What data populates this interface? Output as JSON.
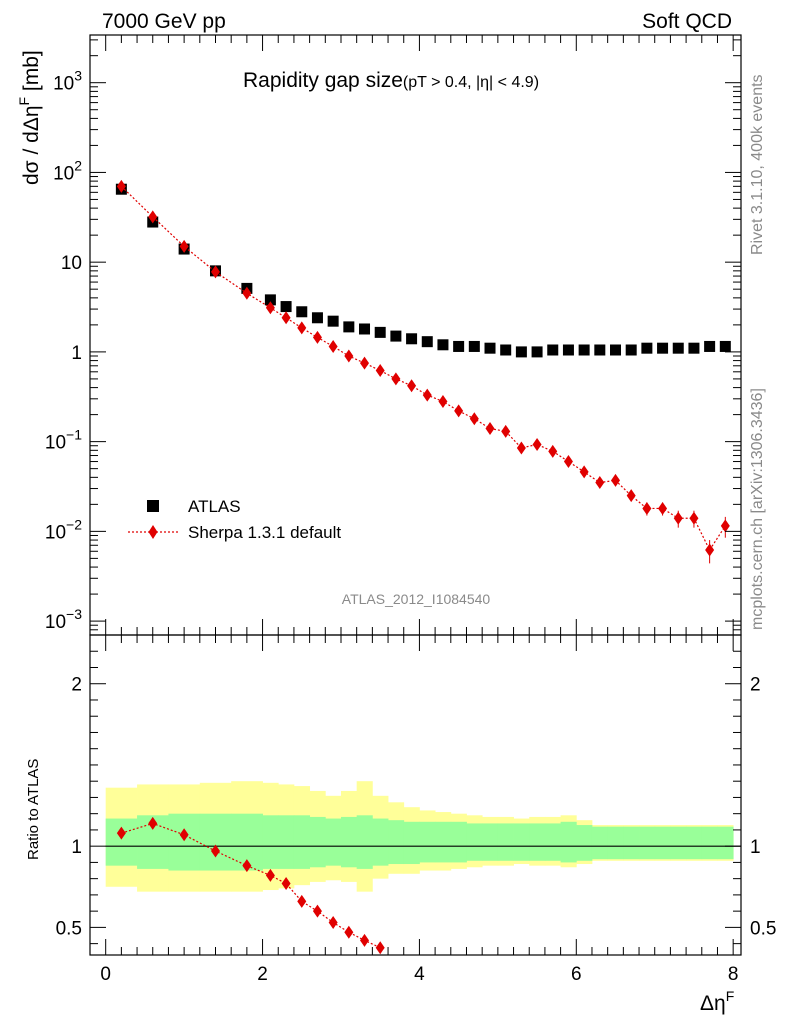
{
  "header": {
    "left": "7000 GeV pp",
    "right": "Soft QCD"
  },
  "side_labels": {
    "rivet": "Rivet 3.1.10,  400k events",
    "mcplots": "mcplots.cern.ch [arXiv:1306.3436]"
  },
  "chart_data": [
    {
      "type": "scatter",
      "title_main": "Rapidity gap size",
      "title_cut": "(pT > 0.4, |η| < 4.9)",
      "ylabel": "dσ / dΔη",
      "ylabel_sup": "F",
      "ylabel_unit": " [mb]",
      "yscale": "log",
      "xlim": [
        -0.2,
        8.1
      ],
      "ylim": [
        0.0007,
        3400
      ],
      "y_ticks": [
        {
          "v": 0.001,
          "label": "10",
          "exp": "−3"
        },
        {
          "v": 0.01,
          "label": "10",
          "exp": "−2"
        },
        {
          "v": 0.1,
          "label": "10",
          "exp": "−1"
        },
        {
          "v": 1,
          "label": "1",
          "exp": ""
        },
        {
          "v": 10,
          "label": "10",
          "exp": ""
        },
        {
          "v": 100,
          "label": "10",
          "exp": "2"
        },
        {
          "v": 1000,
          "label": "10",
          "exp": "3"
        }
      ],
      "analysis_label": "ATLAS_2012_I1084540",
      "legend": {
        "position": "bottom-left",
        "entries": [
          "ATLAS",
          "Sherpa 1.3.1 default"
        ]
      },
      "series": [
        {
          "name": "ATLAS",
          "marker": "square",
          "color": "#000000",
          "x": [
            0.2,
            0.6,
            1.0,
            1.4,
            1.8,
            2.1,
            2.3,
            2.5,
            2.7,
            2.9,
            3.1,
            3.3,
            3.5,
            3.7,
            3.9,
            4.1,
            4.3,
            4.5,
            4.7,
            4.9,
            5.1,
            5.3,
            5.5,
            5.7,
            5.9,
            6.1,
            6.3,
            6.5,
            6.7,
            6.9,
            7.1,
            7.3,
            7.5,
            7.7,
            7.9
          ],
          "y": [
            65,
            28,
            14,
            8.0,
            5.1,
            3.8,
            3.2,
            2.8,
            2.4,
            2.2,
            1.9,
            1.8,
            1.65,
            1.5,
            1.4,
            1.3,
            1.2,
            1.15,
            1.15,
            1.1,
            1.05,
            1.0,
            1.0,
            1.05,
            1.05,
            1.05,
            1.05,
            1.05,
            1.05,
            1.1,
            1.1,
            1.1,
            1.1,
            1.15,
            1.15
          ]
        },
        {
          "name": "Sherpa 1.3.1 default",
          "marker": "diamond",
          "color": "#e00000",
          "x": [
            0.2,
            0.6,
            1.0,
            1.4,
            1.8,
            2.1,
            2.3,
            2.5,
            2.7,
            2.9,
            3.1,
            3.3,
            3.5,
            3.7,
            3.9,
            4.1,
            4.3,
            4.5,
            4.7,
            4.9,
            5.1,
            5.3,
            5.5,
            5.7,
            5.9,
            6.1,
            6.3,
            6.5,
            6.7,
            6.9,
            7.1,
            7.3,
            7.5,
            7.7,
            7.9
          ],
          "y": [
            70,
            32,
            15,
            7.8,
            4.5,
            3.1,
            2.4,
            1.85,
            1.45,
            1.15,
            0.9,
            0.75,
            0.62,
            0.5,
            0.42,
            0.33,
            0.28,
            0.22,
            0.18,
            0.14,
            0.13,
            0.085,
            0.093,
            0.078,
            0.06,
            0.046,
            0.035,
            0.037,
            0.025,
            0.018,
            0.018,
            0.014,
            0.014,
            0.0062,
            0.0115
          ],
          "err_hi": [
            0,
            0,
            0,
            0,
            0,
            0,
            0,
            0,
            0,
            0,
            0,
            0,
            0,
            0,
            0,
            0,
            0,
            0,
            0,
            0,
            0,
            0,
            0,
            0,
            0,
            0,
            0.003,
            0.003,
            0.003,
            0.003,
            0.003,
            0.003,
            0.003,
            0.0018,
            0.003
          ],
          "err_lo": [
            0,
            0,
            0,
            0,
            0,
            0,
            0,
            0,
            0,
            0,
            0,
            0,
            0,
            0,
            0,
            0,
            0,
            0,
            0,
            0,
            0,
            0,
            0,
            0,
            0,
            0,
            0.003,
            0.003,
            0.003,
            0.003,
            0.003,
            0.003,
            0.003,
            0.0018,
            0.003
          ]
        }
      ]
    },
    {
      "type": "scatter",
      "ylabel": "Ratio to ATLAS",
      "xlabel": "Δη",
      "xlabel_sup": "F",
      "xlim": [
        -0.2,
        8.1
      ],
      "ylim": [
        0.33,
        2.3
      ],
      "y_ticks": [
        0.5,
        1,
        2
      ],
      "y_tick_labels": [
        "0.5",
        "1",
        "2"
      ],
      "x_ticks": [
        0,
        2,
        4,
        6,
        8
      ],
      "x_tick_labels": [
        "0",
        "2",
        "4",
        "6",
        "8"
      ],
      "reference_line": 1,
      "bands": {
        "edges": [
          0.0,
          0.4,
          0.8,
          1.2,
          1.6,
          2.0,
          2.2,
          2.4,
          2.6,
          2.8,
          3.0,
          3.2,
          3.4,
          3.6,
          3.8,
          4.0,
          4.2,
          4.4,
          4.6,
          4.8,
          5.0,
          5.2,
          5.4,
          5.6,
          5.8,
          6.0,
          6.2,
          6.4,
          6.6,
          6.8,
          7.0,
          7.2,
          7.4,
          7.6,
          7.8,
          8.0
        ],
        "inner_lo": [
          0.88,
          0.86,
          0.85,
          0.85,
          0.85,
          0.86,
          0.86,
          0.86,
          0.87,
          0.88,
          0.87,
          0.86,
          0.88,
          0.89,
          0.89,
          0.9,
          0.9,
          0.9,
          0.91,
          0.91,
          0.91,
          0.91,
          0.91,
          0.91,
          0.9,
          0.91,
          0.92,
          0.92,
          0.92,
          0.92,
          0.92,
          0.92,
          0.92,
          0.92,
          0.92
        ],
        "inner_hi": [
          1.17,
          1.19,
          1.2,
          1.2,
          1.2,
          1.19,
          1.19,
          1.19,
          1.18,
          1.17,
          1.18,
          1.19,
          1.17,
          1.16,
          1.15,
          1.15,
          1.15,
          1.15,
          1.14,
          1.14,
          1.14,
          1.14,
          1.14,
          1.14,
          1.15,
          1.13,
          1.12,
          1.12,
          1.12,
          1.12,
          1.12,
          1.12,
          1.12,
          1.12,
          1.12
        ],
        "outer_lo": [
          0.75,
          0.72,
          0.72,
          0.72,
          0.72,
          0.73,
          0.74,
          0.76,
          0.78,
          0.79,
          0.78,
          0.72,
          0.8,
          0.83,
          0.83,
          0.85,
          0.85,
          0.86,
          0.87,
          0.88,
          0.88,
          0.89,
          0.88,
          0.88,
          0.87,
          0.89,
          0.91,
          0.91,
          0.91,
          0.91,
          0.91,
          0.91,
          0.91,
          0.91,
          0.91
        ],
        "outer_hi": [
          1.36,
          1.38,
          1.38,
          1.39,
          1.4,
          1.39,
          1.38,
          1.37,
          1.34,
          1.31,
          1.34,
          1.4,
          1.31,
          1.27,
          1.24,
          1.22,
          1.21,
          1.2,
          1.19,
          1.18,
          1.18,
          1.17,
          1.18,
          1.18,
          1.19,
          1.16,
          1.13,
          1.13,
          1.13,
          1.13,
          1.13,
          1.13,
          1.13,
          1.13,
          1.13
        ],
        "inner_color": "#99ff99",
        "outer_color": "#ffff99"
      },
      "series": [
        {
          "name": "Sherpa 1.3.1 default",
          "marker": "diamond",
          "color": "#e00000",
          "x": [
            0.2,
            0.6,
            1.0,
            1.4,
            1.8,
            2.1,
            2.3,
            2.5,
            2.7,
            2.9,
            3.1,
            3.3,
            3.5
          ],
          "y": [
            1.08,
            1.14,
            1.07,
            0.97,
            0.88,
            0.82,
            0.77,
            0.66,
            0.6,
            0.53,
            0.47,
            0.42,
            0.375
          ]
        }
      ]
    }
  ]
}
